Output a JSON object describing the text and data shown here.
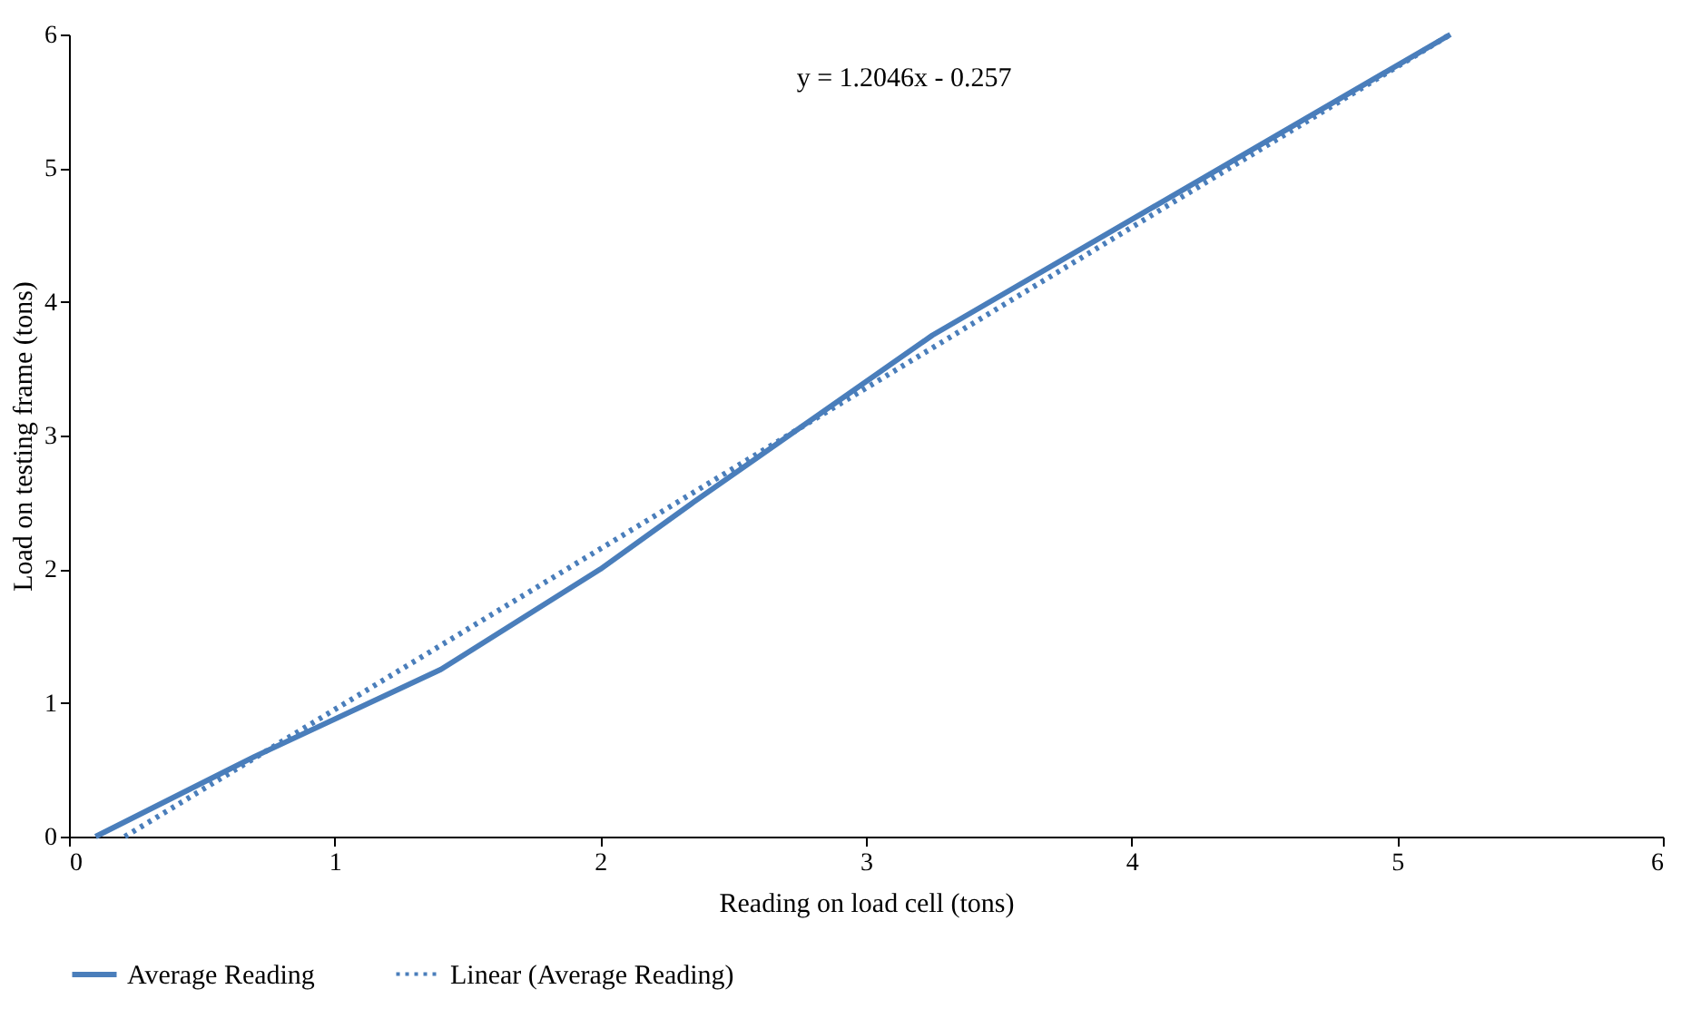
{
  "chart_data": {
    "type": "line",
    "xlabel": "Reading on load cell (tons)",
    "ylabel": "Load on testing frame (tons)",
    "annotations": [
      "y = 1.2046x - 0.257"
    ],
    "series": [
      {
        "name": "Average Reading",
        "color": "#4a7ebb",
        "line_style": "solid",
        "x": [
          0.1,
          0.7,
          1.4,
          2.0,
          2.35,
          3.25,
          5.2
        ],
        "values": [
          0,
          0.6,
          1.25,
          2.0,
          2.5,
          3.75,
          6.0
        ]
      },
      {
        "name": "Linear (Average Reading)",
        "color": "#4a7ebb",
        "line_style": "dotted",
        "x": [
          0.21,
          5.2
        ],
        "values": [
          0,
          6
        ]
      }
    ],
    "xlim": [
      0,
      6
    ],
    "xticks": [
      0,
      1,
      2,
      3,
      4,
      5,
      6
    ],
    "ylim": [
      0,
      6
    ],
    "yticks": [
      0,
      1,
      2,
      3,
      4,
      5,
      6
    ],
    "grid": false,
    "legend": "bottom",
    "marker": "none"
  }
}
